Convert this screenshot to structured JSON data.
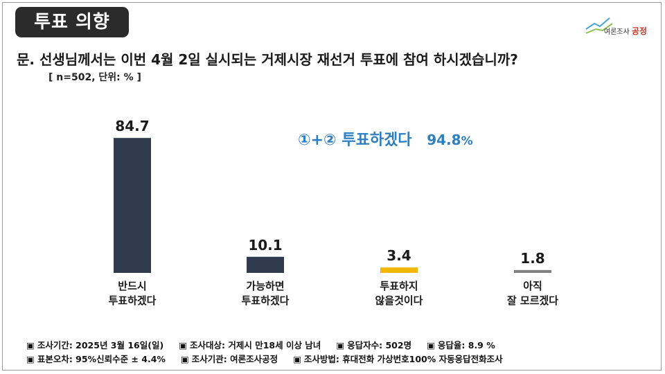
{
  "header": {
    "badge": "투표 의향",
    "logo_text": "여론조사",
    "logo_accent": "공정"
  },
  "question": "문. 선생님께서는 이번 4월 2일 실시되는 거제시장 재선거 투표에 참여 하시겠습니까?",
  "sample_note": "[ n=502, 단위: % ]",
  "summary": {
    "label": "①+②  투표하겠다",
    "value": "94.8",
    "unit": "%"
  },
  "chart_data": {
    "type": "bar",
    "categories": [
      [
        "반드시",
        "투표하겠다"
      ],
      [
        "가능하면",
        "투표하겠다"
      ],
      [
        "투표하지",
        "않을것이다"
      ],
      [
        "아직",
        "잘 모르겠다"
      ]
    ],
    "values": [
      84.7,
      10.1,
      3.4,
      1.8
    ],
    "value_labels": [
      "84.7",
      "10.1",
      "3.4",
      "1.8"
    ],
    "colors": [
      "#2f3a4f",
      "#2f3a4f",
      "#f2b705",
      "#7f7f7f"
    ],
    "ylim": [
      0,
      100
    ],
    "grid": false,
    "legend": "none"
  },
  "footer": {
    "rows": [
      [
        "조사기간: 2025년 3월 16일(일)",
        "조사대상: 거제시 만18세 이상 남녀",
        "응답자수: 502명",
        "응답율:  8.9 %"
      ],
      [
        "표본오차: 95%신뢰수준 ± 4.4%",
        "조사기관: 여론조사공정",
        "조사방법: 휴대전화 가상번호100% 자동응답전화조사"
      ]
    ],
    "bullet": "▣"
  }
}
